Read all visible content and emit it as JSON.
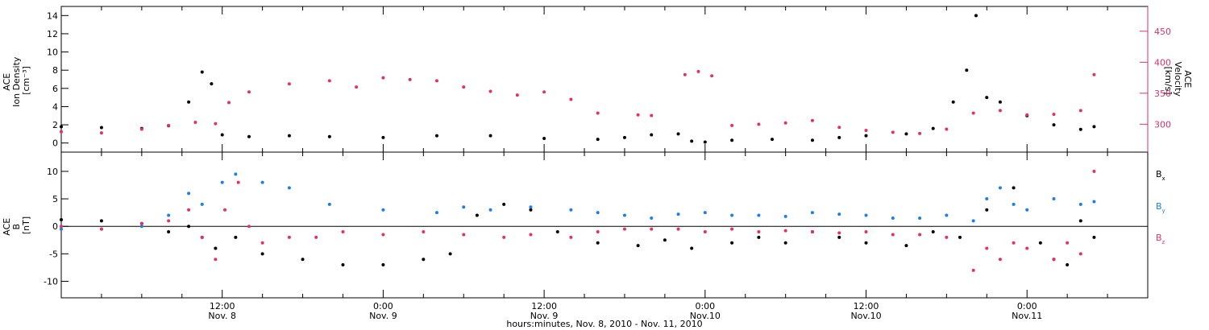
{
  "colors": {
    "black": "#000000",
    "pink": "#e0335f",
    "blue": "#1e7fe0",
    "axis_right": "#d6336a"
  },
  "x_axis": {
    "title": "hours:minutes, Nov.  8, 2010 - Nov. 11, 2010",
    "range_hours": [
      0,
      81
    ],
    "ticks": [
      {
        "time": "12:00",
        "date": "Nov. 8",
        "hours": 12
      },
      {
        "time": "0:00",
        "date": "Nov. 9",
        "hours": 24
      },
      {
        "time": "12:00",
        "date": "Nov. 9",
        "hours": 36
      },
      {
        "time": "0:00",
        "date": "Nov.10",
        "hours": 48
      },
      {
        "time": "12:00",
        "date": "Nov.10",
        "hours": 60
      },
      {
        "time": "0:00",
        "date": "Nov.11",
        "hours": 72
      }
    ]
  },
  "panel_top": {
    "left_label": [
      "ACE",
      "Ion Density",
      "[cm⁻³]"
    ],
    "right_label": [
      "ACE",
      "Velocity",
      "[km/s]"
    ],
    "left_ylim": [
      -1,
      15
    ],
    "left_ticks": [
      "0",
      "2",
      "4",
      "6",
      "8",
      "10",
      "12",
      "14"
    ],
    "right_ylim": [
      255,
      490
    ],
    "right_ticks": [
      "300",
      "350",
      "400",
      "450"
    ]
  },
  "panel_bottom": {
    "left_label": [
      "ACE",
      "B",
      "[nT]"
    ],
    "ylim": [
      -13,
      13.5
    ],
    "left_ticks": [
      "-10",
      "-5",
      "0",
      "5",
      "10"
    ],
    "legend": [
      {
        "base": "B",
        "sub": "x",
        "color": "#000000"
      },
      {
        "base": "B",
        "sub": "y",
        "color": "#1e7fe0"
      },
      {
        "base": "B",
        "sub": "z",
        "color": "#e0335f"
      }
    ]
  },
  "chart_data": [
    {
      "type": "scatter",
      "title": "",
      "xlabel": "hours:minutes, Nov.  8, 2010 - Nov. 11, 2010",
      "ylabel": "ACE Ion Density [cm-3] / ACE Velocity [km/s]",
      "series": [
        {
          "name": "Ion Density",
          "axis": "left",
          "color": "#000000",
          "points": [
            [
              0,
              1.8
            ],
            [
              3,
              1.7
            ],
            [
              6,
              1.6
            ],
            [
              8,
              1.9
            ],
            [
              9.5,
              4.5
            ],
            [
              10.5,
              7.8
            ],
            [
              11.2,
              6.5
            ],
            [
              12,
              0.9
            ],
            [
              14,
              0.7
            ],
            [
              17,
              0.8
            ],
            [
              20,
              0.7
            ],
            [
              24,
              0.6
            ],
            [
              28,
              0.8
            ],
            [
              32,
              0.8
            ],
            [
              36,
              0.5
            ],
            [
              40,
              0.4
            ],
            [
              42,
              0.6
            ],
            [
              44,
              0.9
            ],
            [
              46,
              1.0
            ],
            [
              47,
              0.2
            ],
            [
              48,
              0.1
            ],
            [
              50,
              0.3
            ],
            [
              53,
              0.4
            ],
            [
              56,
              0.3
            ],
            [
              58,
              0.6
            ],
            [
              60,
              0.8
            ],
            [
              63,
              1.0
            ],
            [
              65,
              1.6
            ],
            [
              66.5,
              4.5
            ],
            [
              67.5,
              8
            ],
            [
              68.2,
              14
            ],
            [
              69,
              5
            ],
            [
              70,
              4.5
            ],
            [
              72,
              3
            ],
            [
              74,
              2
            ],
            [
              76,
              1.5
            ],
            [
              77,
              1.8
            ]
          ]
        },
        {
          "name": "Velocity",
          "axis": "right",
          "color": "#e0335f",
          "points": [
            [
              0,
              288
            ],
            [
              3,
              286
            ],
            [
              6,
              292
            ],
            [
              8,
              298
            ],
            [
              10,
              303
            ],
            [
              11.5,
              301
            ],
            [
              12.5,
              335
            ],
            [
              14,
              352
            ],
            [
              17,
              365
            ],
            [
              20,
              370
            ],
            [
              22,
              360
            ],
            [
              24,
              375
            ],
            [
              26,
              372
            ],
            [
              28,
              370
            ],
            [
              30,
              360
            ],
            [
              32,
              353
            ],
            [
              34,
              347
            ],
            [
              36,
              352
            ],
            [
              38,
              340
            ],
            [
              40,
              318
            ],
            [
              43,
              315
            ],
            [
              44,
              314
            ],
            [
              46.5,
              380
            ],
            [
              47.5,
              385
            ],
            [
              48.5,
              378
            ],
            [
              50,
              298
            ],
            [
              52,
              300
            ],
            [
              54,
              302
            ],
            [
              56,
              306
            ],
            [
              58,
              295
            ],
            [
              60,
              290
            ],
            [
              62,
              287
            ],
            [
              64,
              285
            ],
            [
              66,
              292
            ],
            [
              68,
              318
            ],
            [
              70,
              322
            ],
            [
              72,
              315
            ],
            [
              74,
              316
            ],
            [
              76,
              322
            ],
            [
              77,
              380
            ]
          ]
        }
      ]
    },
    {
      "type": "scatter",
      "title": "",
      "xlabel": "hours:minutes, Nov.  8, 2010 - Nov. 11, 2010",
      "ylabel": "ACE B [nT]",
      "ylim": [
        -13,
        13.5
      ],
      "series": [
        {
          "name": "Bx",
          "color": "#000000",
          "points": [
            [
              0,
              1.2
            ],
            [
              3,
              1.0
            ],
            [
              6,
              0.5
            ],
            [
              8,
              -1
            ],
            [
              9.5,
              0
            ],
            [
              10.5,
              -2
            ],
            [
              11.5,
              -4
            ],
            [
              13,
              -2
            ],
            [
              15,
              -5
            ],
            [
              18,
              -6
            ],
            [
              21,
              -7
            ],
            [
              24,
              -7
            ],
            [
              27,
              -6
            ],
            [
              29,
              -5
            ],
            [
              31,
              2
            ],
            [
              33,
              4
            ],
            [
              35,
              3
            ],
            [
              37,
              -1
            ],
            [
              40,
              -3
            ],
            [
              43,
              -3.5
            ],
            [
              45,
              -2.5
            ],
            [
              47,
              -4
            ],
            [
              50,
              -3
            ],
            [
              52,
              -2
            ],
            [
              54,
              -3
            ],
            [
              56,
              -1
            ],
            [
              58,
              -2
            ],
            [
              60,
              -3
            ],
            [
              63,
              -3.5
            ],
            [
              65,
              -1
            ],
            [
              67,
              -2
            ],
            [
              69,
              3
            ],
            [
              71,
              7
            ],
            [
              73,
              -3
            ],
            [
              74,
              -6
            ],
            [
              75,
              -7
            ],
            [
              76,
              1
            ],
            [
              77,
              -2
            ]
          ]
        },
        {
          "name": "By",
          "color": "#1e7fe0",
          "points": [
            [
              0,
              -0.5
            ],
            [
              3,
              -0.5
            ],
            [
              6,
              0
            ],
            [
              8,
              2
            ],
            [
              9.5,
              6
            ],
            [
              10.5,
              4
            ],
            [
              12,
              8
            ],
            [
              13,
              9.5
            ],
            [
              15,
              8
            ],
            [
              17,
              7
            ],
            [
              20,
              4
            ],
            [
              24,
              3
            ],
            [
              28,
              2.5
            ],
            [
              30,
              3.5
            ],
            [
              32,
              3
            ],
            [
              35,
              3.5
            ],
            [
              38,
              3
            ],
            [
              40,
              2.5
            ],
            [
              42,
              2
            ],
            [
              44,
              1.5
            ],
            [
              46,
              2.2
            ],
            [
              48,
              2.5
            ],
            [
              50,
              2
            ],
            [
              52,
              2
            ],
            [
              54,
              1.8
            ],
            [
              56,
              2.5
            ],
            [
              58,
              2.2
            ],
            [
              60,
              2
            ],
            [
              62,
              1.5
            ],
            [
              64,
              1.5
            ],
            [
              66,
              2
            ],
            [
              68,
              1
            ],
            [
              69,
              5
            ],
            [
              70,
              7
            ],
            [
              71,
              4
            ],
            [
              72,
              3
            ],
            [
              74,
              5
            ],
            [
              76,
              4
            ],
            [
              77,
              4.5
            ]
          ]
        },
        {
          "name": "Bz",
          "color": "#e0335f",
          "points": [
            [
              0,
              0
            ],
            [
              3,
              -0.5
            ],
            [
              6,
              0.5
            ],
            [
              8,
              1
            ],
            [
              9.5,
              3
            ],
            [
              10.5,
              -2
            ],
            [
              11.5,
              -6
            ],
            [
              12.2,
              3
            ],
            [
              13.2,
              8
            ],
            [
              14,
              0
            ],
            [
              15,
              -3
            ],
            [
              17,
              -2
            ],
            [
              19,
              -2
            ],
            [
              21,
              -1
            ],
            [
              24,
              -1.5
            ],
            [
              27,
              -1
            ],
            [
              30,
              -1.5
            ],
            [
              33,
              -2
            ],
            [
              35,
              -1.5
            ],
            [
              38,
              -2
            ],
            [
              40,
              -1
            ],
            [
              42,
              -0.5
            ],
            [
              44,
              -0.5
            ],
            [
              46,
              -0.5
            ],
            [
              48,
              -1
            ],
            [
              50,
              -0.5
            ],
            [
              52,
              -1
            ],
            [
              54,
              -0.8
            ],
            [
              56,
              -1
            ],
            [
              58,
              -1.2
            ],
            [
              60,
              -1
            ],
            [
              62,
              -1.5
            ],
            [
              64,
              -1.5
            ],
            [
              66,
              -2
            ],
            [
              68,
              -8
            ],
            [
              69,
              -4
            ],
            [
              70,
              -6
            ],
            [
              71,
              -3
            ],
            [
              72,
              -4
            ],
            [
              74,
              -6
            ],
            [
              75,
              -3
            ],
            [
              76,
              -5
            ],
            [
              77,
              10
            ]
          ]
        }
      ]
    }
  ]
}
